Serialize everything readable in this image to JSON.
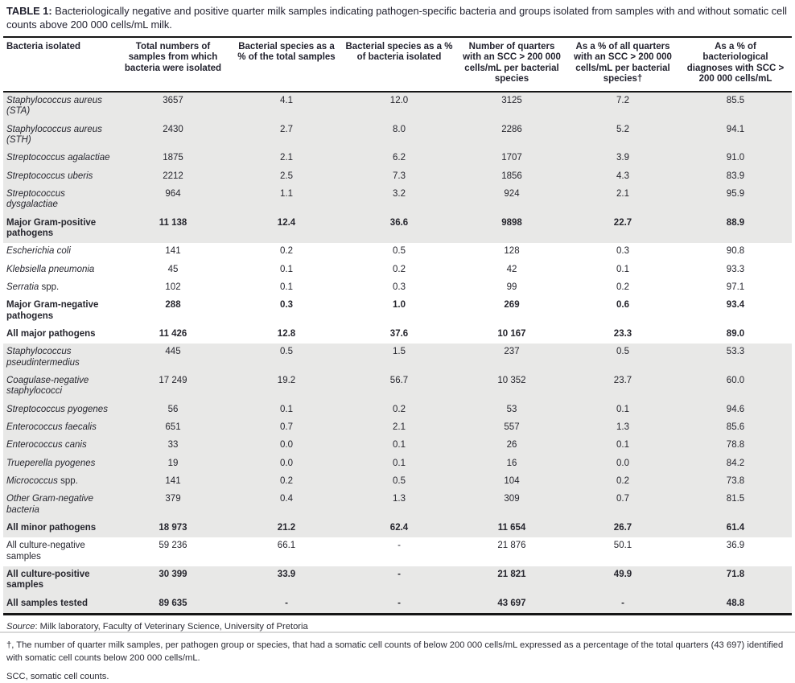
{
  "page": {
    "title_label": "TABLE 1:",
    "title_text": " Bacteriologically negative and positive quarter milk samples indicating pathogen-specific bacteria and groups isolated from samples with and without somatic cell counts above 200 000 cells/mL milk."
  },
  "table": {
    "columns": [
      "Bacteria isolated",
      "Total numbers of samples from which bacteria were isolated",
      "Bacterial species as a % of the total samples",
      "Bacterial species as a % of bacteria isolated",
      "Number of quarters with an SCC > 200 000 cells/mL per bacterial species",
      "As a % of all quarters with an SCC > 200 000 cells/mL per bacterial species†",
      "As a % of bacteriological diagnoses with SCC > 200 000 cells/mL"
    ],
    "rows": [
      {
        "name_italic": "Staphylococcus aureus (STA)",
        "name_plain": "",
        "bold": false,
        "shaded": true,
        "values": [
          "3657",
          "4.1",
          "12.0",
          "3125",
          "7.2",
          "85.5"
        ]
      },
      {
        "name_italic": "Staphylococcus aureus (STH)",
        "name_plain": "",
        "bold": false,
        "shaded": true,
        "values": [
          "2430",
          "2.7",
          "8.0",
          "2286",
          "5.2",
          "94.1"
        ]
      },
      {
        "name_italic": "Streptococcus agalactiae",
        "name_plain": "",
        "bold": false,
        "shaded": true,
        "values": [
          "1875",
          "2.1",
          "6.2",
          "1707",
          "3.9",
          "91.0"
        ]
      },
      {
        "name_italic": "Streptococcus uberis",
        "name_plain": "",
        "bold": false,
        "shaded": true,
        "values": [
          "2212",
          "2.5",
          "7.3",
          "1856",
          "4.3",
          "83.9"
        ]
      },
      {
        "name_italic": "Streptococcus dysgalactiae",
        "name_plain": "",
        "bold": false,
        "shaded": true,
        "values": [
          "964",
          "1.1",
          "3.2",
          "924",
          "2.1",
          "95.9"
        ]
      },
      {
        "name_italic": "",
        "name_plain": "Major Gram-positive pathogens",
        "bold": true,
        "shaded": true,
        "values": [
          "11 138",
          "12.4",
          "36.6",
          "9898",
          "22.7",
          "88.9"
        ]
      },
      {
        "name_italic": "Escherichia coli",
        "name_plain": "",
        "bold": false,
        "shaded": false,
        "values": [
          "141",
          "0.2",
          "0.5",
          "128",
          "0.3",
          "90.8"
        ]
      },
      {
        "name_italic": "Klebsiella pneumonia",
        "name_plain": "",
        "bold": false,
        "shaded": false,
        "values": [
          "45",
          "0.1",
          "0.2",
          "42",
          "0.1",
          "93.3"
        ]
      },
      {
        "name_italic": "Serratia",
        "name_plain": " spp.",
        "bold": false,
        "shaded": false,
        "values": [
          "102",
          "0.1",
          "0.3",
          "99",
          "0.2",
          "97.1"
        ]
      },
      {
        "name_italic": "",
        "name_plain": "Major Gram-negative pathogens",
        "bold": true,
        "shaded": false,
        "values": [
          "288",
          "0.3",
          "1.0",
          "269",
          "0.6",
          "93.4"
        ]
      },
      {
        "name_italic": "",
        "name_plain": "All major pathogens",
        "bold": true,
        "shaded": false,
        "values": [
          "11 426",
          "12.8",
          "37.6",
          "10 167",
          "23.3",
          "89.0"
        ]
      },
      {
        "name_italic": "Staphylococcus pseudintermedius",
        "name_plain": "",
        "bold": false,
        "shaded": true,
        "values": [
          "445",
          "0.5",
          "1.5",
          "237",
          "0.5",
          "53.3"
        ]
      },
      {
        "name_italic": "Coagulase-negative staphylococci",
        "name_plain": "",
        "bold": false,
        "shaded": true,
        "values": [
          "17 249",
          "19.2",
          "56.7",
          "10 352",
          "23.7",
          "60.0"
        ]
      },
      {
        "name_italic": "Streptococcus pyogenes",
        "name_plain": "",
        "bold": false,
        "shaded": true,
        "values": [
          "56",
          "0.1",
          "0.2",
          "53",
          "0.1",
          "94.6"
        ]
      },
      {
        "name_italic": "Enterococcus faecalis",
        "name_plain": "",
        "bold": false,
        "shaded": true,
        "values": [
          "651",
          "0.7",
          "2.1",
          "557",
          "1.3",
          "85.6"
        ]
      },
      {
        "name_italic": "Enterococcus canis",
        "name_plain": "",
        "bold": false,
        "shaded": true,
        "values": [
          "33",
          "0.0",
          "0.1",
          "26",
          "0.1",
          "78.8"
        ]
      },
      {
        "name_italic": "Trueperella pyogenes",
        "name_plain": "",
        "bold": false,
        "shaded": true,
        "values": [
          "19",
          "0.0",
          "0.1",
          "16",
          "0.0",
          "84.2"
        ]
      },
      {
        "name_italic": "Micrococcus",
        "name_plain": " spp.",
        "bold": false,
        "shaded": true,
        "values": [
          "141",
          "0.2",
          "0.5",
          "104",
          "0.2",
          "73.8"
        ]
      },
      {
        "name_italic": "Other Gram-negative bacteria",
        "name_plain": "",
        "bold": false,
        "shaded": true,
        "values": [
          "379",
          "0.4",
          "1.3",
          "309",
          "0.7",
          "81.5"
        ]
      },
      {
        "name_italic": "",
        "name_plain": "All minor pathogens",
        "bold": true,
        "shaded": true,
        "values": [
          "18 973",
          "21.2",
          "62.4",
          "11 654",
          "26.7",
          "61.4"
        ]
      },
      {
        "name_italic": "",
        "name_plain": "All culture-negative samples",
        "bold": false,
        "shaded": false,
        "values": [
          "59 236",
          "66.1",
          "-",
          "21 876",
          "50.1",
          "36.9"
        ]
      },
      {
        "name_italic": "",
        "name_plain": "All culture-positive samples",
        "bold": true,
        "shaded": true,
        "values": [
          "30 399",
          "33.9",
          "-",
          "21 821",
          "49.9",
          "71.8"
        ]
      },
      {
        "name_italic": "",
        "name_plain": "All samples tested",
        "bold": true,
        "shaded": true,
        "values": [
          "89 635",
          "-",
          "-",
          "43 697",
          "-",
          "48.8"
        ]
      }
    ]
  },
  "footnotes": {
    "source_label": "Source",
    "source_text": ": Milk laboratory, Faculty of Veterinary Science, University of Pretoria",
    "dagger_note": "†, The number of quarter milk samples, per pathogen group or species, that had a somatic cell counts of below 200 000 cells/mL expressed as a percentage of the total quarters (43 697) identified with somatic cell counts below 200 000 cells/mL.",
    "scc_note": "SCC, somatic cell counts."
  },
  "colors": {
    "row_shade": "#e8e8e7",
    "rule": "#161616",
    "text": "#26262e"
  }
}
